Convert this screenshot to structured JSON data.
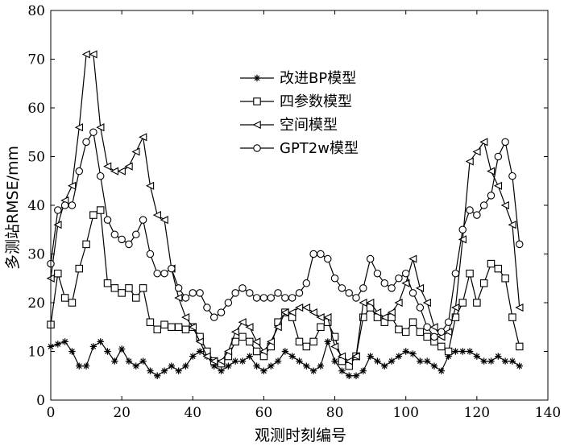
{
  "chart_data": {
    "type": "line",
    "xlabel": "观测时刻编号",
    "ylabel": "多测站RMSE/mm",
    "xlim": [
      0,
      140
    ],
    "ylim": [
      0,
      80
    ],
    "xticks": [
      "0",
      "20",
      "40",
      "60",
      "80",
      "100",
      "120",
      "140"
    ],
    "yticks": [
      "0",
      "10",
      "20",
      "30",
      "40",
      "50",
      "60",
      "70",
      "80"
    ],
    "legend_position": "upper-center",
    "grid": false,
    "series": [
      {
        "name": "改进BP模型",
        "marker": "star",
        "x": [
          0,
          2,
          4,
          6,
          8,
          10,
          12,
          14,
          16,
          18,
          20,
          22,
          24,
          26,
          28,
          30,
          32,
          34,
          36,
          38,
          40,
          42,
          44,
          46,
          48,
          50,
          52,
          54,
          56,
          58,
          60,
          62,
          64,
          66,
          68,
          70,
          72,
          74,
          76,
          78,
          80,
          82,
          84,
          86,
          88,
          90,
          92,
          94,
          96,
          98,
          100,
          102,
          104,
          106,
          108,
          110,
          112,
          114,
          116,
          118,
          120,
          122,
          124,
          126,
          128,
          130,
          132
        ],
        "values": [
          11,
          11.5,
          12,
          10,
          7,
          7,
          11,
          12,
          10,
          8,
          10.5,
          8,
          7,
          8,
          6,
          5,
          6,
          7,
          6,
          7,
          9,
          10,
          9,
          7,
          6,
          7,
          8,
          8,
          9,
          7,
          6,
          7,
          8,
          10,
          9,
          8,
          7,
          6,
          7,
          12,
          8,
          6,
          5,
          5,
          6,
          9,
          8,
          7,
          8,
          9,
          10,
          9.5,
          8,
          8,
          7,
          6,
          9,
          10,
          10,
          10,
          9,
          8,
          8,
          9,
          8,
          8,
          7
        ]
      },
      {
        "name": "四参数模型",
        "marker": "square",
        "x": [
          0,
          2,
          4,
          6,
          8,
          10,
          12,
          14,
          16,
          18,
          20,
          22,
          24,
          26,
          28,
          30,
          32,
          34,
          36,
          38,
          40,
          42,
          44,
          46,
          48,
          50,
          52,
          54,
          56,
          58,
          60,
          62,
          64,
          66,
          68,
          70,
          72,
          74,
          76,
          78,
          80,
          82,
          84,
          86,
          88,
          90,
          92,
          94,
          96,
          98,
          100,
          102,
          104,
          106,
          108,
          110,
          112,
          114,
          116,
          118,
          120,
          122,
          124,
          126,
          128,
          130,
          132
        ],
        "values": [
          15.5,
          26,
          21,
          20,
          27,
          32,
          38,
          39,
          24,
          23,
          22,
          23,
          21,
          23,
          16,
          14.5,
          15.5,
          15,
          15,
          14.5,
          15,
          13,
          10,
          8,
          7.5,
          9,
          12,
          13,
          12,
          10,
          9,
          11,
          16,
          18,
          17,
          12,
          11,
          12,
          15,
          16,
          13,
          8,
          7,
          9,
          17,
          19,
          17,
          16,
          17,
          14.5,
          14,
          16,
          14,
          13,
          12,
          11,
          10,
          17,
          20,
          26,
          20,
          24,
          28,
          27,
          25,
          17,
          11
        ]
      },
      {
        "name": "空间模型",
        "marker": "triangle-left",
        "x": [
          0,
          2,
          4,
          6,
          8,
          10,
          12,
          14,
          16,
          18,
          20,
          22,
          24,
          26,
          28,
          30,
          32,
          34,
          36,
          38,
          40,
          42,
          44,
          46,
          48,
          50,
          52,
          54,
          56,
          58,
          60,
          62,
          64,
          66,
          68,
          70,
          72,
          74,
          76,
          78,
          80,
          82,
          84,
          86,
          88,
          90,
          92,
          94,
          96,
          98,
          100,
          102,
          104,
          106,
          108,
          110,
          112,
          114,
          116,
          118,
          120,
          122,
          124,
          126,
          128,
          130,
          132
        ],
        "values": [
          25,
          36,
          41,
          44,
          56,
          71,
          71,
          56,
          48,
          47,
          47,
          48,
          51,
          54,
          44,
          38,
          37,
          27,
          21,
          17,
          15,
          12,
          9,
          8,
          8,
          10,
          14,
          16,
          15,
          12,
          10,
          12,
          15,
          18,
          18,
          19,
          19,
          18,
          17,
          17,
          11,
          9,
          8,
          9,
          20,
          20,
          18,
          17,
          18,
          20,
          24,
          29,
          23,
          20,
          15,
          13,
          14,
          19,
          33,
          49,
          51,
          53,
          47,
          44,
          40,
          36,
          19
        ]
      },
      {
        "name": "GPT2w模型",
        "marker": "circle",
        "x": [
          0,
          2,
          4,
          6,
          8,
          10,
          12,
          14,
          16,
          18,
          20,
          22,
          24,
          26,
          28,
          30,
          32,
          34,
          36,
          38,
          40,
          42,
          44,
          46,
          48,
          50,
          52,
          54,
          56,
          58,
          60,
          62,
          64,
          66,
          68,
          70,
          72,
          74,
          76,
          78,
          80,
          82,
          84,
          86,
          88,
          90,
          92,
          94,
          96,
          98,
          100,
          102,
          104,
          106,
          108,
          110,
          112,
          114,
          116,
          118,
          120,
          122,
          124,
          126,
          128,
          130,
          132
        ],
        "values": [
          28,
          39,
          40,
          40,
          47,
          53,
          55,
          46,
          37,
          34,
          33,
          32,
          34,
          37,
          30,
          26,
          26,
          27,
          23,
          21,
          22,
          22,
          19,
          17,
          18,
          20,
          22,
          23,
          22,
          21,
          21,
          21,
          22,
          21,
          21,
          22,
          24,
          30,
          30,
          29,
          25,
          23,
          22,
          21,
          23,
          29,
          26,
          24,
          23,
          25,
          26,
          22,
          19,
          15,
          13,
          14,
          16,
          26,
          35,
          39,
          38,
          40,
          42,
          50,
          53,
          46,
          32
        ]
      }
    ]
  }
}
